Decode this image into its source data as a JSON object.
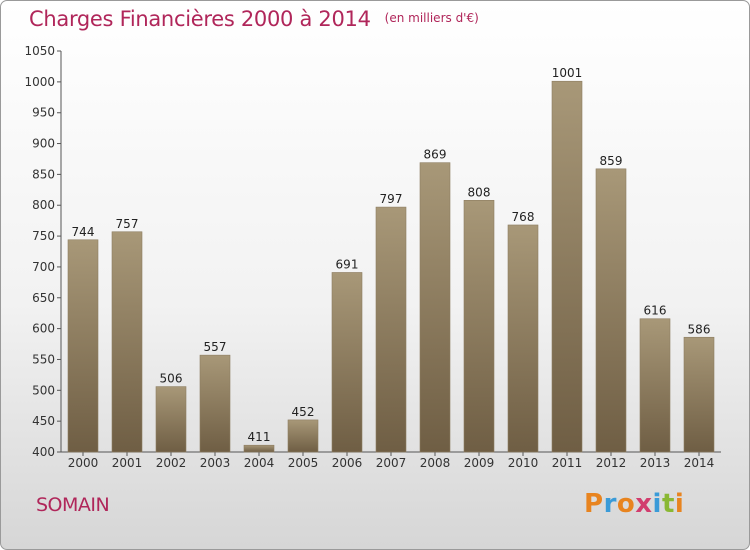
{
  "title": "Charges Financières 2000 à 2014",
  "subtitle": "(en milliers d'€)",
  "commune": "SOMAIN",
  "logo": {
    "letters": [
      "P",
      "r",
      "o",
      "x",
      "i",
      "t",
      "i"
    ],
    "colors": [
      "#e8841f",
      "#3a9bd8",
      "#e8841f",
      "#d23d6e",
      "#3a9bd8",
      "#8ab833",
      "#e8841f"
    ]
  },
  "colors": {
    "accent": "#b0265a",
    "bar_top": "#a89878",
    "bar_bottom": "#6f5e44",
    "axis": "#555555"
  },
  "chart_data": {
    "type": "bar",
    "title": "Charges Financières 2000 à 2014",
    "subtitle": "(en milliers d'€)",
    "categories": [
      "2000",
      "2001",
      "2002",
      "2003",
      "2004",
      "2005",
      "2006",
      "2007",
      "2008",
      "2009",
      "2010",
      "2011",
      "2012",
      "2013",
      "2014"
    ],
    "values": [
      744,
      757,
      506,
      557,
      411,
      452,
      691,
      797,
      869,
      808,
      768,
      1001,
      859,
      616,
      586
    ],
    "ylim": [
      400,
      1050
    ],
    "yticks": [
      400,
      450,
      500,
      550,
      600,
      650,
      700,
      750,
      800,
      850,
      900,
      950,
      1000,
      1050
    ],
    "grid": false,
    "data_labels": true
  }
}
